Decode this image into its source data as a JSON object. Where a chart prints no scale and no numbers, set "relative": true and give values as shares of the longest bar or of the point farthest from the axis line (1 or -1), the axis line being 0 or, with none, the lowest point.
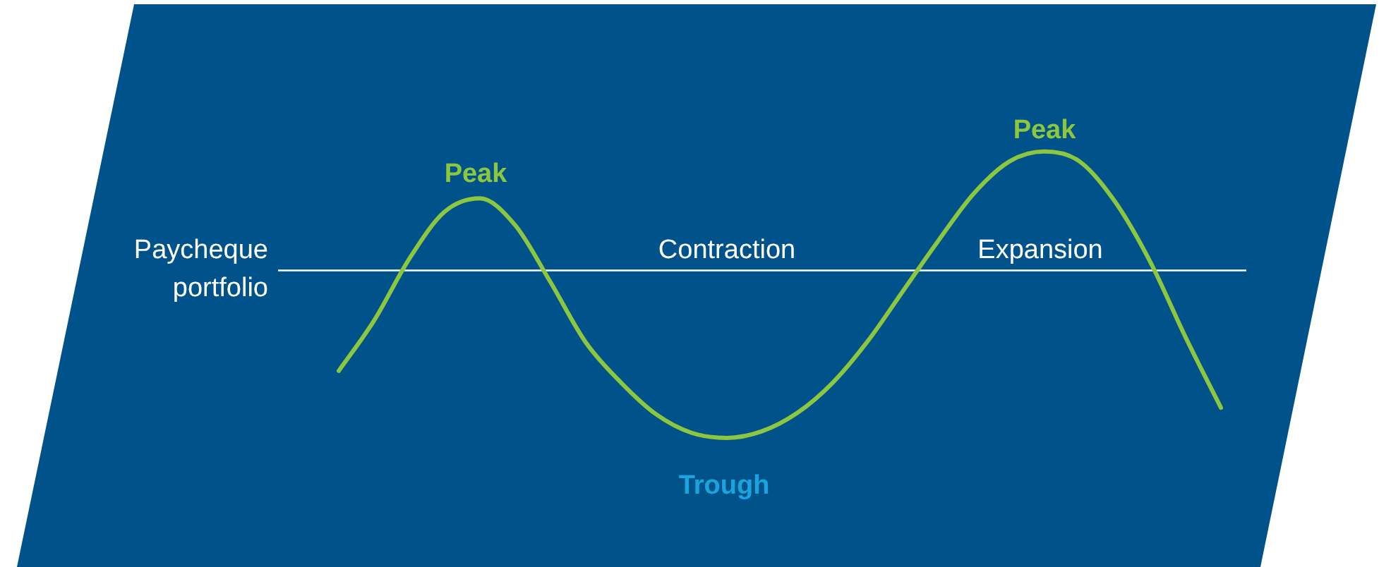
{
  "chart_data": {
    "type": "line",
    "relative": true,
    "categories": [
      null,
      null,
      null,
      null,
      null,
      null,
      null,
      null,
      null,
      null,
      null,
      null,
      null,
      null,
      null,
      null,
      null,
      null,
      null,
      null,
      null,
      null,
      null,
      null,
      null,
      null
    ],
    "series": [
      {
        "color": "#8dc63f",
        "values": [
          -0.6,
          -0.3,
          0.07,
          0.35,
          0.43,
          0.27,
          -0.07,
          -0.43,
          -0.67,
          -0.86,
          -0.97,
          -1,
          -0.96,
          -0.85,
          -0.67,
          -0.42,
          -0.12,
          0.18,
          0.46,
          0.65,
          0.71,
          0.65,
          0.41,
          0.05,
          -0.4,
          -0.82
        ]
      }
    ],
    "ref_lines": [
      {
        "axis": "y",
        "value": 0,
        "label": "Paycheque portfolio",
        "color": "#ffffff"
      }
    ],
    "annotations": [
      "Peak",
      "Peak",
      "Trough",
      "Contraction",
      "Expansion"
    ],
    "marker": "none",
    "line_style": "solid",
    "legend": false
  }
}
